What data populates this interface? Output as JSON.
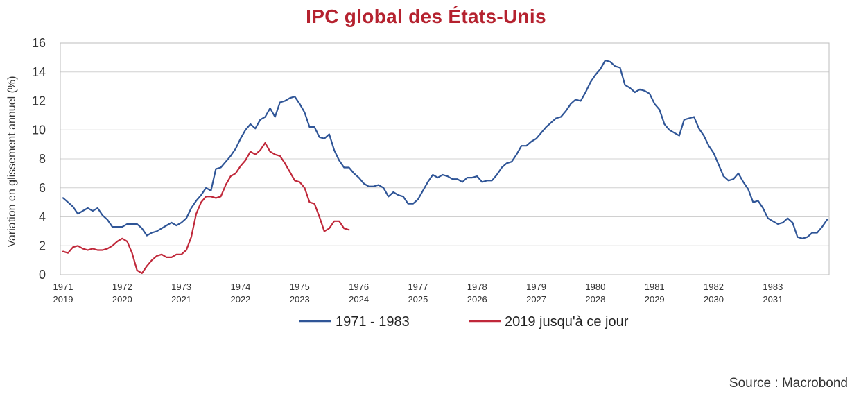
{
  "title": "IPC global des États-Unis",
  "source": "Source : Macrobond",
  "colors": {
    "title": "#b5222f",
    "series_1971": "#2f5597",
    "series_2019": "#c0283a",
    "grid": "#d0d0d0"
  },
  "chart_data": {
    "type": "line",
    "title": "IPC global des États-Unis",
    "xlabel": "",
    "ylabel": "Variation en glissement annuel (%)",
    "ylim": [
      0,
      16
    ],
    "yticks": [
      0,
      2,
      4,
      6,
      8,
      10,
      12,
      14,
      16
    ],
    "grid": true,
    "legend_position": "bottom",
    "x_tick_labels": [
      {
        "top": "1971",
        "bottom": "2019"
      },
      {
        "top": "1972",
        "bottom": "2020"
      },
      {
        "top": "1973",
        "bottom": "2021"
      },
      {
        "top": "1974",
        "bottom": "2022"
      },
      {
        "top": "1975",
        "bottom": "2023"
      },
      {
        "top": "1976",
        "bottom": "2024"
      },
      {
        "top": "1977",
        "bottom": "2025"
      },
      {
        "top": "1978",
        "bottom": "2026"
      },
      {
        "top": "1979",
        "bottom": "2027"
      },
      {
        "top": "1980",
        "bottom": "2028"
      },
      {
        "top": "1981",
        "bottom": "2029"
      },
      {
        "top": "1982",
        "bottom": "2030"
      },
      {
        "top": "1983",
        "bottom": "2031"
      }
    ],
    "x_unit": "months since start (January of first year)",
    "series": [
      {
        "name": "1971 - 1983",
        "color": "#2f5597",
        "values": [
          5.3,
          5.0,
          4.7,
          4.2,
          4.4,
          4.6,
          4.4,
          4.6,
          4.1,
          3.8,
          3.3,
          3.3,
          3.3,
          3.5,
          3.5,
          3.5,
          3.2,
          2.7,
          2.9,
          3.0,
          3.2,
          3.4,
          3.6,
          3.4,
          3.6,
          3.9,
          4.6,
          5.1,
          5.5,
          6.0,
          5.8,
          7.3,
          7.4,
          7.8,
          8.2,
          8.7,
          9.4,
          10.0,
          10.4,
          10.1,
          10.7,
          10.9,
          11.5,
          10.9,
          11.9,
          12.0,
          12.2,
          12.3,
          11.8,
          11.2,
          10.2,
          10.2,
          9.5,
          9.4,
          9.7,
          8.6,
          7.9,
          7.4,
          7.4,
          7.0,
          6.7,
          6.3,
          6.1,
          6.1,
          6.2,
          6.0,
          5.4,
          5.7,
          5.5,
          5.4,
          4.9,
          4.9,
          5.2,
          5.8,
          6.4,
          6.9,
          6.7,
          6.9,
          6.8,
          6.6,
          6.6,
          6.4,
          6.7,
          6.7,
          6.8,
          6.4,
          6.5,
          6.5,
          6.9,
          7.4,
          7.7,
          7.8,
          8.3,
          8.9,
          8.9,
          9.2,
          9.4,
          9.8,
          10.2,
          10.5,
          10.8,
          10.9,
          11.3,
          11.8,
          12.1,
          12.0,
          12.6,
          13.3,
          13.8,
          14.2,
          14.8,
          14.7,
          14.4,
          14.3,
          13.1,
          12.9,
          12.6,
          12.8,
          12.7,
          12.5,
          11.8,
          11.4,
          10.4,
          10.0,
          9.8,
          9.6,
          10.7,
          10.8,
          10.9,
          10.1,
          9.6,
          8.9,
          8.4,
          7.6,
          6.8,
          6.5,
          6.6,
          7.0,
          6.4,
          5.9,
          5.0,
          5.1,
          4.6,
          3.9,
          3.7,
          3.5,
          3.6,
          3.9,
          3.6,
          2.6,
          2.5,
          2.6,
          2.9,
          2.9,
          3.3,
          3.8
        ]
      },
      {
        "name": "2019 jusqu'à ce jour",
        "color": "#c0283a",
        "values": [
          1.6,
          1.5,
          1.9,
          2.0,
          1.8,
          1.7,
          1.8,
          1.7,
          1.7,
          1.8,
          2.0,
          2.3,
          2.5,
          2.3,
          1.5,
          0.3,
          0.1,
          0.6,
          1.0,
          1.3,
          1.4,
          1.2,
          1.2,
          1.4,
          1.4,
          1.7,
          2.6,
          4.2,
          5.0,
          5.4,
          5.4,
          5.3,
          5.4,
          6.2,
          6.8,
          7.0,
          7.5,
          7.9,
          8.5,
          8.3,
          8.6,
          9.1,
          8.5,
          8.3,
          8.2,
          7.7,
          7.1,
          6.5,
          6.4,
          6.0,
          5.0,
          4.9,
          4.0,
          3.0,
          3.2,
          3.7,
          3.7,
          3.2,
          3.1
        ]
      }
    ]
  }
}
